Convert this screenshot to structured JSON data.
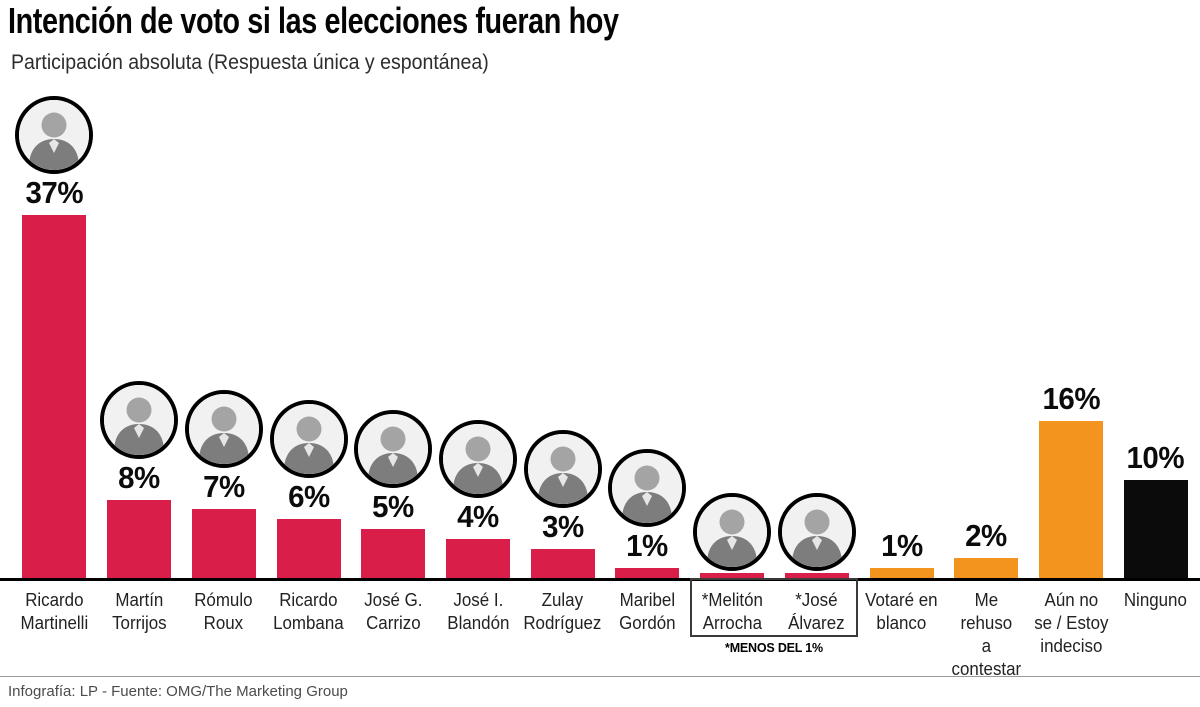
{
  "title": "Intención de voto si las elecciones fueran hoy",
  "subtitle": "Participación absoluta (Respuesta única y espontánea)",
  "footnote": "*MENOS DEL 1%",
  "footer": "Infografía: LP - Fuente: OMG/The Marketing Group",
  "colors": {
    "bar_candidate": "#d91e4a",
    "bar_other": "#f3941f",
    "bar_none": "#0b0b0b",
    "baseline": "#000000"
  },
  "chart_data": {
    "type": "bar",
    "title": "Intención de voto si las elecciones fueran hoy",
    "subtitle": "Participación absoluta (Respuesta única y espontánea)",
    "unit": "%",
    "ylim": [
      0,
      37
    ],
    "grid": false,
    "legend": false,
    "footnote": "*MENOS DEL 1%",
    "source": "Infografía: LP - Fuente: OMG/The Marketing Group",
    "bars": [
      {
        "label": "Ricardo Martinelli",
        "label_lines": [
          "Ricardo",
          "Martinelli"
        ],
        "value": 37,
        "display": "37%",
        "color": "candidate",
        "photo": true
      },
      {
        "label": "Martín Torrijos",
        "label_lines": [
          "Martín",
          "Torrijos"
        ],
        "value": 8,
        "display": "8%",
        "color": "candidate",
        "photo": true
      },
      {
        "label": "Rómulo Roux",
        "label_lines": [
          "Rómulo",
          "Roux"
        ],
        "value": 7,
        "display": "7%",
        "color": "candidate",
        "photo": true
      },
      {
        "label": "Ricardo Lombana",
        "label_lines": [
          "Ricardo",
          "Lombana"
        ],
        "value": 6,
        "display": "6%",
        "color": "candidate",
        "photo": true
      },
      {
        "label": "José G. Carrizo",
        "label_lines": [
          "José G.",
          "Carrizo"
        ],
        "value": 5,
        "display": "5%",
        "color": "candidate",
        "photo": true
      },
      {
        "label": "José I. Blandón",
        "label_lines": [
          "José I.",
          "Blandón"
        ],
        "value": 4,
        "display": "4%",
        "color": "candidate",
        "photo": true
      },
      {
        "label": "Zulay Rodríguez",
        "label_lines": [
          "Zulay",
          "Rodríguez"
        ],
        "value": 3,
        "display": "3%",
        "color": "candidate",
        "photo": true
      },
      {
        "label": "Maribel Gordón",
        "label_lines": [
          "Maribel",
          "Gordón"
        ],
        "value": 1,
        "display": "1%",
        "color": "candidate",
        "photo": true
      },
      {
        "label": "*Melitón Arrocha",
        "label_lines": [
          "*Melitón",
          "Arrocha"
        ],
        "value": 0.5,
        "display": "",
        "color": "candidate",
        "photo": true,
        "note": "*MENOS DEL 1%"
      },
      {
        "label": "*José Álvarez",
        "label_lines": [
          "*José",
          "Álvarez"
        ],
        "value": 0.5,
        "display": "",
        "color": "candidate",
        "photo": true,
        "note": "*MENOS DEL 1%"
      },
      {
        "label": "Votaré en blanco",
        "label_lines": [
          "Votaré en",
          "blanco"
        ],
        "value": 1,
        "display": "1%",
        "color": "other",
        "photo": false
      },
      {
        "label": "Me rehuso a contestar",
        "label_lines": [
          "Me rehuso",
          "a contestar"
        ],
        "value": 2,
        "display": "2%",
        "color": "other",
        "photo": false
      },
      {
        "label": "Aún no se / Estoy indeciso",
        "label_lines": [
          "Aún no",
          "se / Estoy",
          "indeciso"
        ],
        "value": 16,
        "display": "16%",
        "color": "other",
        "photo": false
      },
      {
        "label": "Ninguno",
        "label_lines": [
          "Ninguno"
        ],
        "value": 10,
        "display": "10%",
        "color": "none",
        "photo": false
      }
    ]
  }
}
